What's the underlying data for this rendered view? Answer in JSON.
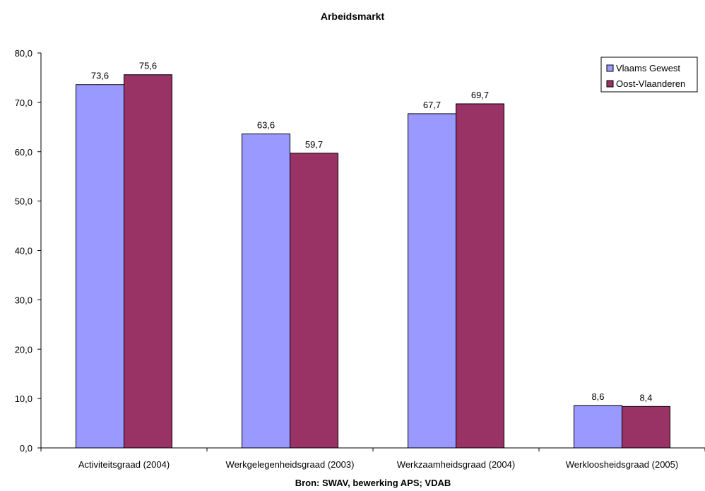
{
  "chart_data": {
    "type": "bar",
    "title": "Arbeidsmarkt",
    "xlabel": "Bron: SWAV, bewerking APS; VDAB",
    "ylabel": "",
    "ylim": [
      0,
      80
    ],
    "yticks": [
      "0,0",
      "10,0",
      "20,0",
      "30,0",
      "40,0",
      "50,0",
      "60,0",
      "70,0",
      "80,0"
    ],
    "categories": [
      "Activiteitsgraad (2004)",
      "Werkgelegenheidsgraad (2003)",
      "Werkzaamheidsgraad  (2004)",
      "Werkloosheidsgraad (2005)"
    ],
    "series": [
      {
        "name": "Vlaams Gewest",
        "values": [
          73.6,
          63.6,
          67.7,
          8.6
        ],
        "labels": [
          "73,6",
          "63,6",
          "67,7",
          "8,6"
        ],
        "color": "#9999ff"
      },
      {
        "name": "Oost-Vlaanderen",
        "values": [
          75.6,
          59.7,
          69.7,
          8.4
        ],
        "labels": [
          "75,6",
          "59,7",
          "69,7",
          "8,4"
        ],
        "color": "#993366"
      }
    ],
    "legend_position": "top-right",
    "grid": false
  }
}
